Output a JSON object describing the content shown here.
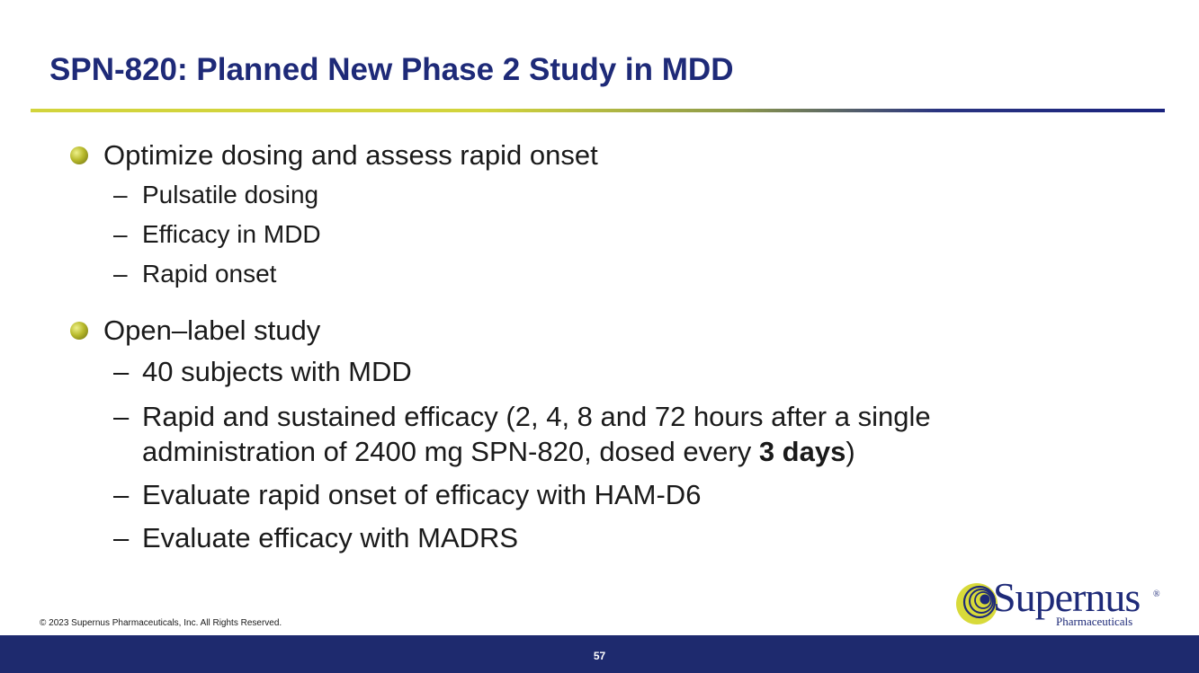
{
  "slide": {
    "title": "SPN-820: Planned New Phase 2 Study in MDD",
    "bullets": [
      {
        "text": "Optimize dosing and assess rapid onset",
        "subs": [
          "Pulsatile dosing",
          "Efficacy in MDD",
          "Rapid onset"
        ]
      },
      {
        "text": "Open–label study",
        "subs": [
          "40 subjects with MDD",
          "Rapid and sustained efficacy (2, 4, 8 and 72 hours after a single",
          "administration of 2400 mg SPN-820, dosed every ",
          "3 days",
          ")",
          "Evaluate rapid onset of efficacy with HAM-D6",
          "Evaluate efficacy with MADRS"
        ]
      }
    ],
    "dash": "–"
  },
  "footer": {
    "copyright": "© 2023 Supernus Pharmaceuticals, Inc. All Rights Reserved.",
    "page_number": "57"
  },
  "logo": {
    "wordmark": "Supernus",
    "registered": "®",
    "subtitle": "Pharmaceuticals"
  },
  "colors": {
    "title": "#1e2a78",
    "footer_bar": "#1e2a6e",
    "bullet_dot": "#b8ba2c",
    "rule_start": "#d2d43c",
    "rule_end": "#1a237e"
  }
}
